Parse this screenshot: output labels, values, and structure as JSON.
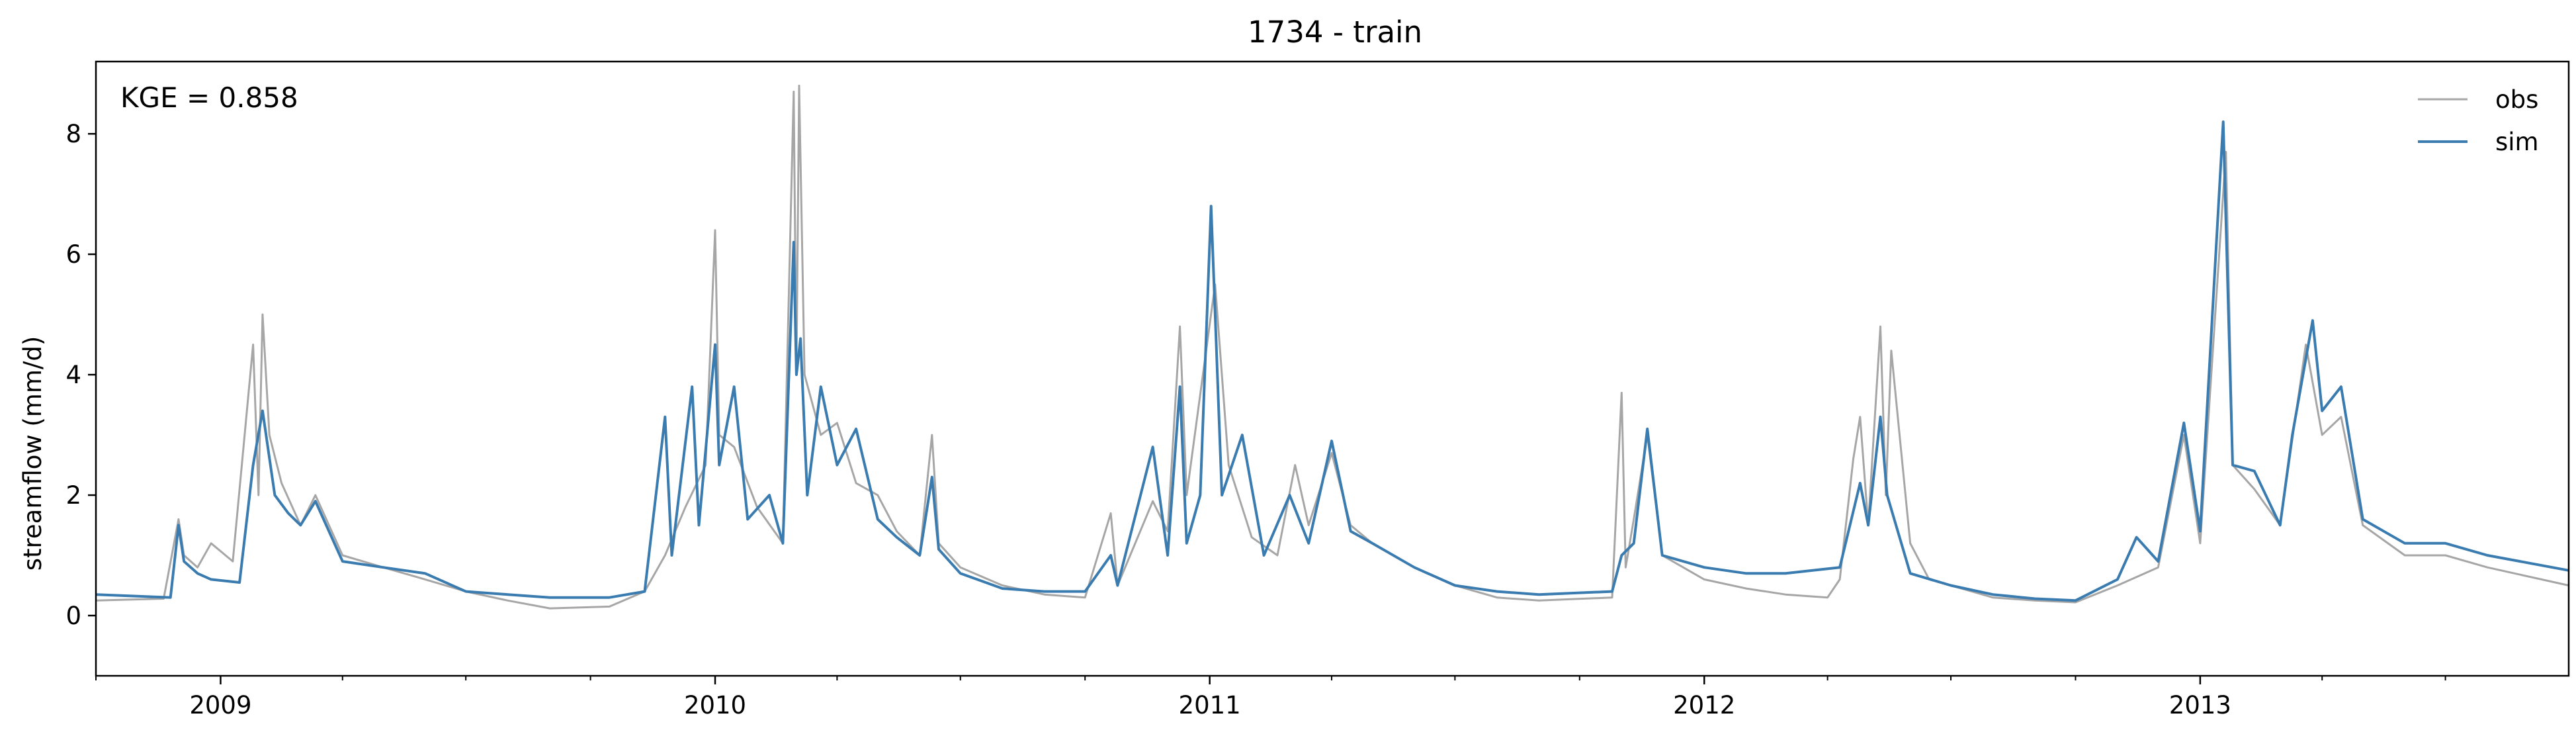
{
  "chart_data": {
    "type": "line",
    "title": "1734 - train",
    "ylabel": "streamflow (mm/d)",
    "xlabel": "",
    "annotation": "KGE = 0.858",
    "x_range": [
      "2008-10-01",
      "2013-09-30"
    ],
    "ylim": [
      -1,
      9.2
    ],
    "yticks": [
      0,
      2,
      4,
      6,
      8
    ],
    "xticks": [
      {
        "date": "2009-01-01",
        "label": "2009"
      },
      {
        "date": "2010-01-01",
        "label": "2010"
      },
      {
        "date": "2011-01-01",
        "label": "2011"
      },
      {
        "date": "2012-01-01",
        "label": "2012"
      },
      {
        "date": "2013-01-01",
        "label": "2013"
      }
    ],
    "grid": false,
    "legend_position": "top-right",
    "series": [
      {
        "name": "obs",
        "color": "#a6a6a6",
        "points": [
          [
            "2008-10-01",
            0.25
          ],
          [
            "2008-11-20",
            0.28
          ],
          [
            "2008-12-01",
            1.6
          ],
          [
            "2008-12-05",
            1.0
          ],
          [
            "2008-12-15",
            0.8
          ],
          [
            "2008-12-25",
            1.2
          ],
          [
            "2009-01-10",
            0.9
          ],
          [
            "2009-01-25",
            4.5
          ],
          [
            "2009-01-29",
            2.0
          ],
          [
            "2009-02-01",
            5.0
          ],
          [
            "2009-02-06",
            3.0
          ],
          [
            "2009-02-15",
            2.2
          ],
          [
            "2009-03-01",
            1.5
          ],
          [
            "2009-03-12",
            2.0
          ],
          [
            "2009-04-01",
            1.0
          ],
          [
            "2009-05-01",
            0.8
          ],
          [
            "2009-06-01",
            0.6
          ],
          [
            "2009-07-01",
            0.4
          ],
          [
            "2009-08-01",
            0.25
          ],
          [
            "2009-09-01",
            0.12
          ],
          [
            "2009-10-15",
            0.15
          ],
          [
            "2009-11-10",
            0.4
          ],
          [
            "2009-11-25",
            1.0
          ],
          [
            "2009-12-10",
            1.8
          ],
          [
            "2009-12-25",
            2.5
          ],
          [
            "2010-01-01",
            6.4
          ],
          [
            "2010-01-04",
            3.0
          ],
          [
            "2010-01-15",
            2.8
          ],
          [
            "2010-02-01",
            1.8
          ],
          [
            "2010-02-20",
            1.2
          ],
          [
            "2010-02-28",
            8.7
          ],
          [
            "2010-03-02",
            4.0
          ],
          [
            "2010-03-04",
            8.8
          ],
          [
            "2010-03-08",
            4.0
          ],
          [
            "2010-03-20",
            3.0
          ],
          [
            "2010-04-01",
            3.2
          ],
          [
            "2010-04-15",
            2.2
          ],
          [
            "2010-05-01",
            2.0
          ],
          [
            "2010-05-15",
            1.4
          ],
          [
            "2010-06-01",
            1.0
          ],
          [
            "2010-06-10",
            3.0
          ],
          [
            "2010-06-15",
            1.2
          ],
          [
            "2010-07-01",
            0.8
          ],
          [
            "2010-08-01",
            0.5
          ],
          [
            "2010-09-01",
            0.35
          ],
          [
            "2010-10-01",
            0.3
          ],
          [
            "2010-10-20",
            1.7
          ],
          [
            "2010-10-25",
            0.5
          ],
          [
            "2010-11-20",
            1.9
          ],
          [
            "2010-12-01",
            1.4
          ],
          [
            "2010-12-10",
            4.8
          ],
          [
            "2010-12-15",
            2.0
          ],
          [
            "2011-01-05",
            5.5
          ],
          [
            "2011-01-15",
            2.5
          ],
          [
            "2011-02-01",
            1.3
          ],
          [
            "2011-02-20",
            1.0
          ],
          [
            "2011-03-05",
            2.5
          ],
          [
            "2011-03-15",
            1.5
          ],
          [
            "2011-04-01",
            2.7
          ],
          [
            "2011-04-15",
            1.5
          ],
          [
            "2011-05-01",
            1.2
          ],
          [
            "2011-06-01",
            0.8
          ],
          [
            "2011-07-01",
            0.5
          ],
          [
            "2011-08-01",
            0.3
          ],
          [
            "2011-09-01",
            0.25
          ],
          [
            "2011-10-25",
            0.3
          ],
          [
            "2011-11-01",
            3.7
          ],
          [
            "2011-11-04",
            0.8
          ],
          [
            "2011-11-10",
            1.6
          ],
          [
            "2011-11-20",
            3.0
          ],
          [
            "2011-12-01",
            1.0
          ],
          [
            "2012-01-01",
            0.6
          ],
          [
            "2012-02-01",
            0.45
          ],
          [
            "2012-03-01",
            0.35
          ],
          [
            "2012-04-01",
            0.3
          ],
          [
            "2012-04-10",
            0.6
          ],
          [
            "2012-04-20",
            2.6
          ],
          [
            "2012-04-25",
            3.3
          ],
          [
            "2012-05-01",
            1.5
          ],
          [
            "2012-05-10",
            4.8
          ],
          [
            "2012-05-14",
            2.0
          ],
          [
            "2012-05-18",
            4.4
          ],
          [
            "2012-06-01",
            1.2
          ],
          [
            "2012-06-15",
            0.6
          ],
          [
            "2012-07-01",
            0.5
          ],
          [
            "2012-08-01",
            0.3
          ],
          [
            "2012-09-01",
            0.25
          ],
          [
            "2012-10-01",
            0.22
          ],
          [
            "2012-11-01",
            0.5
          ],
          [
            "2012-12-01",
            0.8
          ],
          [
            "2012-12-20",
            3.0
          ],
          [
            "2013-01-01",
            1.2
          ],
          [
            "2013-01-20",
            7.7
          ],
          [
            "2013-01-25",
            2.5
          ],
          [
            "2013-02-10",
            2.1
          ],
          [
            "2013-03-01",
            1.5
          ],
          [
            "2013-03-20",
            4.5
          ],
          [
            "2013-04-01",
            3.0
          ],
          [
            "2013-04-15",
            3.3
          ],
          [
            "2013-05-01",
            1.5
          ],
          [
            "2013-06-01",
            1.0
          ],
          [
            "2013-07-01",
            1.0
          ],
          [
            "2013-08-01",
            0.8
          ],
          [
            "2013-09-30",
            0.5
          ]
        ]
      },
      {
        "name": "sim",
        "color": "#3a7bb0",
        "points": [
          [
            "2008-10-01",
            0.35
          ],
          [
            "2008-11-25",
            0.3
          ],
          [
            "2008-12-01",
            1.5
          ],
          [
            "2008-12-05",
            0.9
          ],
          [
            "2008-12-15",
            0.7
          ],
          [
            "2008-12-25",
            0.6
          ],
          [
            "2009-01-15",
            0.55
          ],
          [
            "2009-01-25",
            2.5
          ],
          [
            "2009-02-01",
            3.4
          ],
          [
            "2009-02-10",
            2.0
          ],
          [
            "2009-02-20",
            1.7
          ],
          [
            "2009-03-01",
            1.5
          ],
          [
            "2009-03-12",
            1.9
          ],
          [
            "2009-04-01",
            0.9
          ],
          [
            "2009-05-01",
            0.8
          ],
          [
            "2009-06-01",
            0.7
          ],
          [
            "2009-07-01",
            0.4
          ],
          [
            "2009-08-01",
            0.35
          ],
          [
            "2009-09-01",
            0.3
          ],
          [
            "2009-10-15",
            0.3
          ],
          [
            "2009-11-10",
            0.4
          ],
          [
            "2009-11-25",
            3.3
          ],
          [
            "2009-11-30",
            1.0
          ],
          [
            "2009-12-15",
            3.8
          ],
          [
            "2009-12-20",
            1.5
          ],
          [
            "2010-01-01",
            4.5
          ],
          [
            "2010-01-04",
            2.5
          ],
          [
            "2010-01-15",
            3.8
          ],
          [
            "2010-01-25",
            1.6
          ],
          [
            "2010-02-10",
            2.0
          ],
          [
            "2010-02-20",
            1.2
          ],
          [
            "2010-02-28",
            6.2
          ],
          [
            "2010-03-02",
            4.0
          ],
          [
            "2010-03-05",
            4.6
          ],
          [
            "2010-03-10",
            2.0
          ],
          [
            "2010-03-20",
            3.8
          ],
          [
            "2010-04-01",
            2.5
          ],
          [
            "2010-04-15",
            3.1
          ],
          [
            "2010-05-01",
            1.6
          ],
          [
            "2010-05-15",
            1.3
          ],
          [
            "2010-06-01",
            1.0
          ],
          [
            "2010-06-10",
            2.3
          ],
          [
            "2010-06-15",
            1.1
          ],
          [
            "2010-07-01",
            0.7
          ],
          [
            "2010-08-01",
            0.45
          ],
          [
            "2010-09-01",
            0.4
          ],
          [
            "2010-10-01",
            0.4
          ],
          [
            "2010-10-20",
            1.0
          ],
          [
            "2010-10-25",
            0.5
          ],
          [
            "2010-11-20",
            2.8
          ],
          [
            "2010-12-01",
            1.0
          ],
          [
            "2010-12-10",
            3.8
          ],
          [
            "2010-12-15",
            1.2
          ],
          [
            "2010-12-25",
            2.0
          ],
          [
            "2011-01-02",
            6.8
          ],
          [
            "2011-01-10",
            2.0
          ],
          [
            "2011-01-25",
            3.0
          ],
          [
            "2011-02-10",
            1.0
          ],
          [
            "2011-03-01",
            2.0
          ],
          [
            "2011-03-15",
            1.2
          ],
          [
            "2011-04-01",
            2.9
          ],
          [
            "2011-04-15",
            1.4
          ],
          [
            "2011-05-01",
            1.2
          ],
          [
            "2011-06-01",
            0.8
          ],
          [
            "2011-07-01",
            0.5
          ],
          [
            "2011-08-01",
            0.4
          ],
          [
            "2011-09-01",
            0.35
          ],
          [
            "2011-10-25",
            0.4
          ],
          [
            "2011-11-01",
            1.0
          ],
          [
            "2011-11-10",
            1.2
          ],
          [
            "2011-11-20",
            3.1
          ],
          [
            "2011-12-01",
            1.0
          ],
          [
            "2012-01-01",
            0.8
          ],
          [
            "2012-02-01",
            0.7
          ],
          [
            "2012-03-01",
            0.7
          ],
          [
            "2012-04-10",
            0.8
          ],
          [
            "2012-04-25",
            2.2
          ],
          [
            "2012-05-01",
            1.5
          ],
          [
            "2012-05-10",
            3.3
          ],
          [
            "2012-05-15",
            2.0
          ],
          [
            "2012-06-01",
            0.7
          ],
          [
            "2012-07-01",
            0.5
          ],
          [
            "2012-08-01",
            0.35
          ],
          [
            "2012-09-01",
            0.28
          ],
          [
            "2012-10-01",
            0.25
          ],
          [
            "2012-11-01",
            0.6
          ],
          [
            "2012-11-15",
            1.3
          ],
          [
            "2012-12-01",
            0.9
          ],
          [
            "2012-12-20",
            3.2
          ],
          [
            "2013-01-01",
            1.4
          ],
          [
            "2013-01-18",
            8.2
          ],
          [
            "2013-01-25",
            2.5
          ],
          [
            "2013-02-10",
            2.4
          ],
          [
            "2013-03-01",
            1.5
          ],
          [
            "2013-03-10",
            3.0
          ],
          [
            "2013-03-25",
            4.9
          ],
          [
            "2013-04-01",
            3.4
          ],
          [
            "2013-04-15",
            3.8
          ],
          [
            "2013-05-01",
            1.6
          ],
          [
            "2013-06-01",
            1.2
          ],
          [
            "2013-07-01",
            1.2
          ],
          [
            "2013-08-01",
            1.0
          ],
          [
            "2013-09-30",
            0.75
          ]
        ]
      }
    ]
  }
}
